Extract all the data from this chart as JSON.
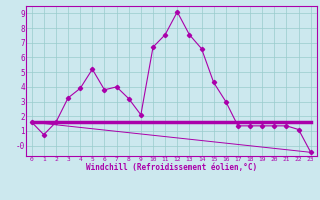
{
  "xlabel": "Windchill (Refroidissement éolien,°C)",
  "background_color": "#cce8ee",
  "line_color": "#aa00aa",
  "grid_color": "#99cccc",
  "xlim": [
    -0.5,
    23.5
  ],
  "ylim": [
    -0.7,
    9.5
  ],
  "xticks": [
    0,
    1,
    2,
    3,
    4,
    5,
    6,
    7,
    8,
    9,
    10,
    11,
    12,
    13,
    14,
    15,
    16,
    17,
    18,
    19,
    20,
    21,
    22,
    23
  ],
  "yticks": [
    0,
    1,
    2,
    3,
    4,
    5,
    6,
    7,
    8,
    9
  ],
  "ytick_labels": [
    "-0",
    "1",
    "2",
    "3",
    "4",
    "5",
    "6",
    "7",
    "8",
    "9"
  ],
  "line1_x": [
    0,
    1,
    2,
    3,
    4,
    5,
    6,
    7,
    8,
    9,
    10,
    11,
    12,
    13,
    14,
    15,
    16,
    17,
    18,
    19,
    20,
    21,
    22,
    23
  ],
  "line1_y": [
    1.6,
    0.75,
    1.6,
    3.25,
    3.9,
    5.2,
    3.8,
    4.0,
    3.2,
    2.1,
    6.7,
    7.55,
    9.1,
    7.55,
    6.6,
    4.3,
    3.0,
    1.35,
    1.35,
    1.35,
    1.35,
    1.35,
    1.1,
    -0.45
  ],
  "line2_x": [
    0,
    23
  ],
  "line2_y": [
    1.6,
    -0.45
  ],
  "line3_x": [
    0,
    14.5,
    23
  ],
  "line3_y": [
    1.6,
    1.6,
    1.6
  ]
}
